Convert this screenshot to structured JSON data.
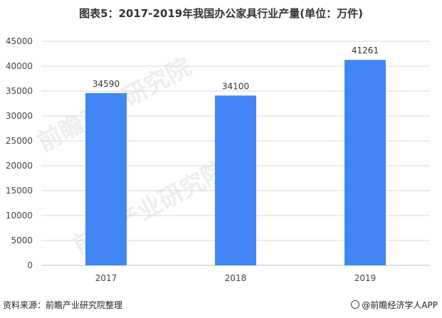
{
  "chart_data": {
    "type": "bar",
    "title": "图表5：2017-2019年我国办公家具行业产量(单位：万件)",
    "categories": [
      "2017",
      "2018",
      "2019"
    ],
    "values": [
      34590,
      34100,
      41261
    ],
    "ylim": [
      0,
      45000
    ],
    "yticks": [
      "0",
      "5000",
      "10000",
      "15000",
      "20000",
      "25000",
      "30000",
      "35000",
      "40000",
      "45000"
    ],
    "grid": true,
    "bar_color": "#4285f4"
  },
  "footer": {
    "source": "资料来源：前瞻产业研究院整理",
    "credit": "@前瞻经济学人APP"
  },
  "watermark": {
    "text": "前瞻产业研究院"
  }
}
